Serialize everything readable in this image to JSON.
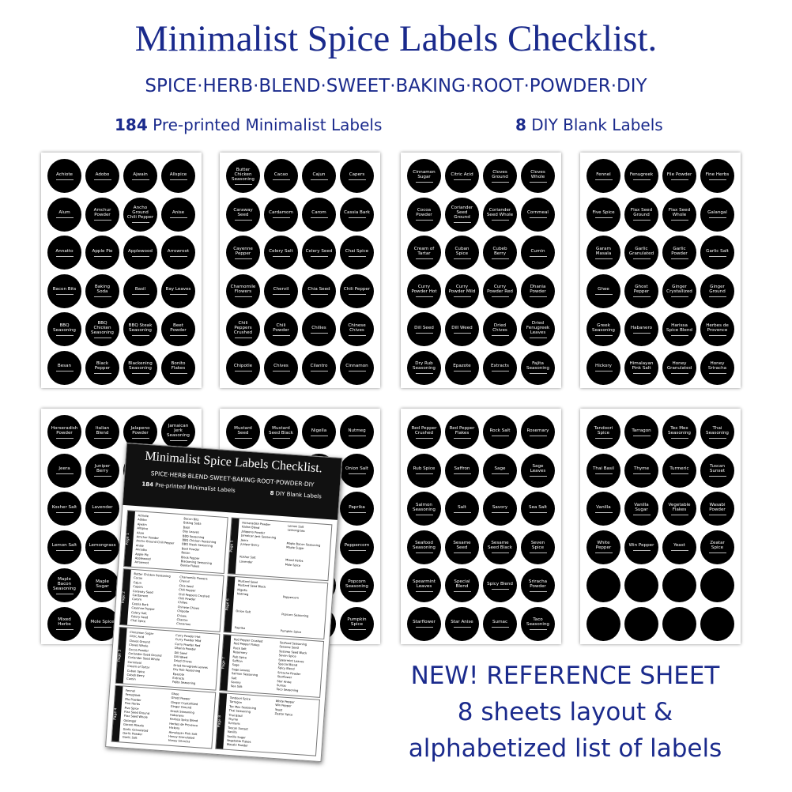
{
  "header": {
    "title": "Minimalist Spice Labels Checklist.",
    "subtitle": "SPICE·HERB·BLEND·SWEET·BAKING·ROOT·POWDER·DIY",
    "counts": [
      {
        "number": "184",
        "text": "Pre-printed Minimalist Labels"
      },
      {
        "number": "8",
        "text": "DIY Blank Labels"
      }
    ]
  },
  "sheets": [
    {
      "labels": [
        "Achiote",
        "Adobo",
        "Ajwain",
        "Allspice",
        "Alum",
        "Amchur Powder",
        "Ancho Ground Chili Pepper",
        "Anise",
        "Annatto",
        "Apple Pie",
        "Applewood",
        "Arrowroot",
        "Bacon Bits",
        "Baking Soda",
        "Basil",
        "Bay Leaves",
        "BBQ Seasoning",
        "BBQ Chicken Seasoning",
        "BBQ Steak Seasoning",
        "Beet Powder",
        "Besan",
        "Black Pepper",
        "Blackening Seasoning",
        "Bonito Flakes"
      ]
    },
    {
      "labels": [
        "Butter Chicken Seasoning",
        "Cacao",
        "Cajun",
        "Capers",
        "Caraway Seed",
        "Cardamom",
        "Carom",
        "Cassia Bark",
        "Cayenne Pepper",
        "Celery Salt",
        "Celery Seed",
        "Chai Spice",
        "Chamomile Flowers",
        "Chervil",
        "Chia Seed",
        "Chili Pepper",
        "Chili Peppers Crushed",
        "Chili Powder",
        "Chilies",
        "Chinese Chives",
        "Chipotle",
        "Chives",
        "Cilantro",
        "Cinnamon"
      ]
    },
    {
      "labels": [
        "Cinnamon Sugar",
        "Citric Acid",
        "Cloves Ground",
        "Cloves Whole",
        "Cocoa Powder",
        "Coriander Seed Ground",
        "Coriander Seed Whole",
        "Cornmeal",
        "Cream of Tartar",
        "Cuban Spice",
        "Cubeb Berry",
        "Cumin",
        "Curry Powder Hot",
        "Curry Powder Mild",
        "Curry Powder Red",
        "Dhania Powder",
        "Dill Seed",
        "Dill Weed",
        "Dried Chives",
        "Dried Fenugreek Leaves",
        "Dry Rub Seasoning",
        "Epazote",
        "Extracts",
        "Fajita Seasoning"
      ]
    },
    {
      "labels": [
        "Fennel",
        "Fenugreek",
        "File Powder",
        "Fine Herbs",
        "Five Spice",
        "Flax Seed Ground",
        "Flax Seed Whole",
        "Galangal",
        "Garam Masala",
        "Garlic Granulated",
        "Garlic Powder",
        "Garlic Salt",
        "Ghee",
        "Ghost Pepper",
        "Ginger Crystallized",
        "Ginger Ground",
        "Greek Seasoning",
        "Habanero",
        "Harissa Spice Blend",
        "Herbes de Provence",
        "Hickory",
        "Himalayan Pink Salt",
        "Honey Granulated",
        "Honey Sriracha"
      ]
    },
    {
      "labels": [
        "Horseradish Powder",
        "Italian Blend",
        "Jalapeno Powder",
        "Jamaican Jerk Seasoning",
        "Jeera",
        "Juniper Berry",
        null,
        null,
        "Kosher Salt",
        "Lavender",
        null,
        null,
        "Lemon Salt",
        "Lemongrass",
        null,
        null,
        "Maple Bacon Seasoning",
        "Maple Sugar",
        null,
        null,
        "Mixed Herbs",
        "Mole Spice",
        null,
        null
      ]
    },
    {
      "labels": [
        "Mustard Seed",
        "Mustard Seed Black",
        "Nigella",
        "Nutmeg",
        null,
        null,
        null,
        "Onion Salt",
        null,
        null,
        null,
        "Paprika",
        null,
        null,
        null,
        "Peppercorn",
        null,
        null,
        null,
        "Popcorn Seasoning",
        null,
        null,
        null,
        "Pumpkin Spice"
      ]
    },
    {
      "labels": [
        "Red Pepper Crushed",
        "Red Pepper Flakes",
        "Rock Salt",
        "Rosemary",
        "Rub Spice",
        "Saffron",
        "Sage",
        "Sage Leaves",
        "Salmon Seasoning",
        "Salt",
        "Savory",
        "Sea Salt",
        "Seafood Seasoning",
        "Sesame Seed",
        "Sesame Seed Black",
        "Seven Spice",
        "Spearmint Leaves",
        "Special Blend",
        "Spicy Blend",
        "Sriracha Powder",
        "Starflower",
        "Star Anise",
        "Sumac",
        "Taco Seasoning"
      ]
    },
    {
      "labels": [
        "Tandoori Spice",
        "Tarragon",
        "Tex Mex Seasoning",
        "Thai Seasoning",
        "Thai Basil",
        "Thyme",
        "Turmeric",
        "Tuscan Sunset",
        "Vanilla",
        "Vanilla Sugar",
        "Vegetable Flakes",
        "Wasabi Powder",
        "White Pepper",
        "Win Pepper",
        "Yeast",
        "Zeatar Spice",
        null,
        null,
        null,
        null,
        null,
        null,
        null,
        null
      ]
    }
  ],
  "reference": {
    "pages": [
      "Page 1",
      "Page 2",
      "Page 3",
      "Page 4",
      "Page 5",
      "Page 6",
      "Page 7",
      "Page 8"
    ]
  },
  "callout": {
    "lines": [
      "NEW! REFERENCE SHEET",
      "8 sheets layout &",
      "alphabetized list of labels"
    ]
  }
}
